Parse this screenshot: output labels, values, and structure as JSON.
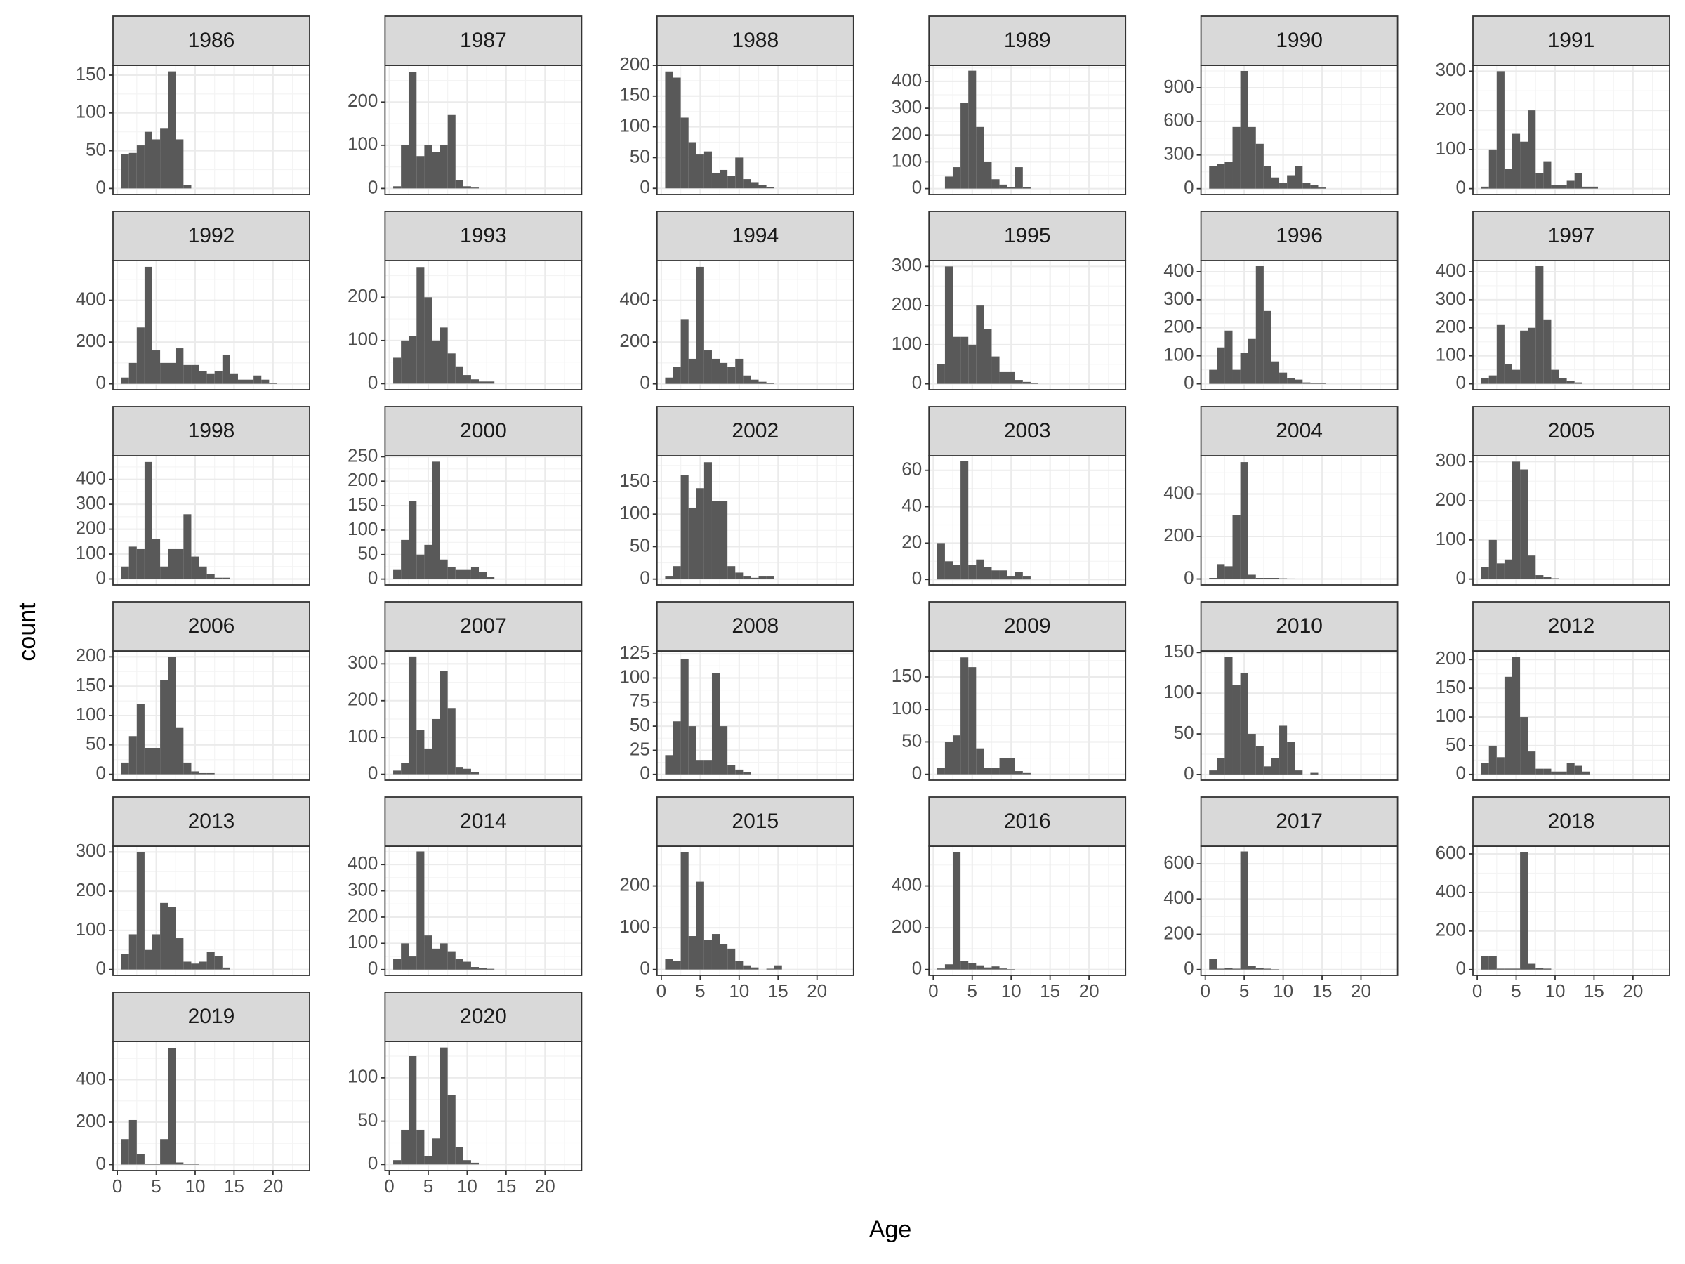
{
  "chart_data": {
    "type": "histogram",
    "x_label": "Age",
    "y_label": "count",
    "color": "#595959",
    "grid": true,
    "bins": [
      0.5,
      1.5,
      2.5,
      3.5,
      4.5,
      5.5,
      6.5,
      7.5,
      8.5,
      9.5,
      10.5,
      11.5,
      12.5,
      13.5,
      14.5,
      15.5,
      16.5,
      17.5,
      18.5,
      19.5,
      20.5,
      21.5,
      22.5,
      23.5
    ],
    "xlim": [
      -0.55,
      24.7
    ],
    "xticks": [
      0,
      5,
      10,
      15,
      20
    ],
    "facets": [
      {
        "title": "1986",
        "ylim": [
          -8,
          163
        ],
        "yticks": [
          0,
          50,
          100,
          150
        ],
        "values": [
          45,
          47,
          57,
          75,
          65,
          80,
          155,
          65,
          5,
          0,
          0,
          0,
          0,
          0,
          0,
          0,
          0,
          0,
          0,
          0,
          0,
          0,
          0
        ]
      },
      {
        "title": "1987",
        "ylim": [
          -14,
          285
        ],
        "yticks": [
          0,
          100,
          200
        ],
        "values": [
          5,
          100,
          270,
          75,
          100,
          85,
          100,
          170,
          20,
          5,
          2,
          0,
          0,
          0,
          0,
          0,
          0,
          0,
          0,
          0,
          0,
          0,
          0
        ]
      },
      {
        "title": "1988",
        "ylim": [
          -10,
          200
        ],
        "yticks": [
          0,
          50,
          100,
          150,
          200
        ],
        "values": [
          190,
          180,
          115,
          75,
          55,
          60,
          25,
          30,
          20,
          50,
          15,
          10,
          5,
          2,
          0,
          0,
          0,
          0,
          0,
          0,
          0,
          0,
          0
        ]
      },
      {
        "title": "1989",
        "ylim": [
          -22,
          460
        ],
        "yticks": [
          0,
          100,
          200,
          300,
          400
        ],
        "values": [
          0,
          45,
          80,
          320,
          440,
          230,
          100,
          35,
          15,
          5,
          80,
          5,
          0,
          0,
          0,
          0,
          0,
          0,
          0,
          0,
          0,
          0,
          0
        ]
      },
      {
        "title": "1990",
        "ylim": [
          -52,
          1100
        ],
        "yticks": [
          0,
          300,
          600,
          900
        ],
        "values": [
          200,
          220,
          240,
          550,
          1050,
          550,
          400,
          200,
          100,
          50,
          120,
          200,
          50,
          30,
          10,
          0,
          0,
          0,
          0,
          0,
          0,
          0,
          0
        ]
      },
      {
        "title": "1991",
        "ylim": [
          -15,
          315
        ],
        "yticks": [
          0,
          100,
          200,
          300
        ],
        "values": [
          5,
          100,
          300,
          50,
          140,
          120,
          200,
          40,
          70,
          10,
          10,
          20,
          40,
          5,
          5,
          0,
          0,
          0,
          0,
          0,
          0,
          0,
          0
        ]
      },
      {
        "title": "1992",
        "ylim": [
          -28,
          590
        ],
        "yticks": [
          0,
          200,
          400
        ],
        "values": [
          30,
          100,
          270,
          560,
          160,
          100,
          100,
          170,
          90,
          90,
          60,
          50,
          60,
          140,
          50,
          20,
          20,
          40,
          20,
          5,
          0,
          0,
          0
        ]
      },
      {
        "title": "1993",
        "ylim": [
          -14,
          285
        ],
        "yticks": [
          0,
          100,
          200
        ],
        "values": [
          60,
          100,
          110,
          270,
          200,
          100,
          130,
          70,
          40,
          20,
          10,
          5,
          5,
          0,
          0,
          0,
          0,
          0,
          0,
          0,
          0,
          0,
          0
        ]
      },
      {
        "title": "1994",
        "ylim": [
          -28,
          590
        ],
        "yticks": [
          0,
          200,
          400
        ],
        "values": [
          30,
          80,
          310,
          120,
          560,
          160,
          120,
          100,
          80,
          120,
          40,
          20,
          10,
          5,
          0,
          0,
          0,
          0,
          0,
          0,
          0,
          0,
          0
        ]
      },
      {
        "title": "1995",
        "ylim": [
          -15,
          315
        ],
        "yticks": [
          0,
          100,
          200,
          300
        ],
        "values": [
          50,
          300,
          120,
          120,
          100,
          200,
          140,
          70,
          30,
          30,
          10,
          5,
          2,
          0,
          0,
          0,
          0,
          0,
          0,
          0,
          0,
          0,
          0
        ]
      },
      {
        "title": "1996",
        "ylim": [
          -21,
          440
        ],
        "yticks": [
          0,
          100,
          200,
          300,
          400
        ],
        "values": [
          50,
          130,
          190,
          50,
          110,
          160,
          420,
          260,
          80,
          40,
          20,
          15,
          5,
          2,
          3,
          0,
          0,
          0,
          0,
          0,
          0,
          0,
          0
        ]
      },
      {
        "title": "1997",
        "ylim": [
          -21,
          440
        ],
        "yticks": [
          0,
          100,
          200,
          300,
          400
        ],
        "values": [
          20,
          30,
          210,
          70,
          50,
          190,
          200,
          420,
          230,
          50,
          20,
          10,
          5,
          0,
          0,
          0,
          0,
          0,
          0,
          0,
          0,
          0,
          0
        ]
      },
      {
        "title": "1998",
        "ylim": [
          -24,
          495
        ],
        "yticks": [
          0,
          100,
          200,
          300,
          400
        ],
        "values": [
          50,
          130,
          120,
          470,
          160,
          50,
          120,
          120,
          260,
          90,
          50,
          20,
          5,
          5,
          0,
          0,
          0,
          0,
          0,
          0,
          0,
          0,
          0
        ]
      },
      {
        "title": "2000",
        "ylim": [
          -12,
          252
        ],
        "yticks": [
          0,
          50,
          100,
          150,
          200,
          250
        ],
        "values": [
          20,
          80,
          160,
          50,
          70,
          240,
          40,
          25,
          20,
          20,
          25,
          15,
          5,
          0,
          0,
          0,
          0,
          0,
          0,
          0,
          0,
          0,
          0
        ]
      },
      {
        "title": "2002",
        "ylim": [
          -9,
          190
        ],
        "yticks": [
          0,
          50,
          100,
          150
        ],
        "values": [
          5,
          20,
          160,
          110,
          140,
          180,
          120,
          120,
          20,
          10,
          5,
          2,
          5,
          5,
          0,
          0,
          0,
          0,
          0,
          0,
          0,
          0,
          0
        ]
      },
      {
        "title": "2003",
        "ylim": [
          -3,
          68
        ],
        "yticks": [
          0,
          20,
          40,
          60
        ],
        "values": [
          20,
          10,
          8,
          65,
          8,
          11,
          7,
          5,
          5,
          2,
          4,
          2,
          0,
          0,
          0,
          0,
          0,
          0,
          0,
          0,
          0,
          0,
          0
        ]
      },
      {
        "title": "2004",
        "ylim": [
          -28,
          580
        ],
        "yticks": [
          0,
          200,
          400
        ],
        "values": [
          5,
          70,
          60,
          300,
          550,
          20,
          5,
          5,
          5,
          3,
          2,
          1,
          0,
          0,
          0,
          0,
          0,
          0,
          0,
          0,
          0,
          0,
          0
        ]
      },
      {
        "title": "2005",
        "ylim": [
          -15,
          315
        ],
        "yticks": [
          0,
          100,
          200,
          300
        ],
        "values": [
          30,
          100,
          40,
          50,
          300,
          280,
          60,
          10,
          5,
          2,
          0,
          0,
          0,
          0,
          0,
          0,
          0,
          0,
          0,
          0,
          0,
          0,
          0
        ]
      },
      {
        "title": "2006",
        "ylim": [
          -10,
          210
        ],
        "yticks": [
          0,
          50,
          100,
          150,
          200
        ],
        "values": [
          20,
          65,
          120,
          45,
          45,
          160,
          200,
          80,
          20,
          5,
          2,
          2,
          0,
          0,
          0,
          0,
          0,
          0,
          0,
          0,
          0,
          0,
          0
        ]
      },
      {
        "title": "2007",
        "ylim": [
          -16,
          335
        ],
        "yticks": [
          0,
          100,
          200,
          300
        ],
        "values": [
          10,
          30,
          320,
          120,
          70,
          150,
          280,
          180,
          20,
          15,
          5,
          0,
          0,
          0,
          0,
          0,
          0,
          0,
          0,
          0,
          0,
          0,
          0
        ]
      },
      {
        "title": "2008",
        "ylim": [
          -6,
          128
        ],
        "yticks": [
          0,
          25,
          50,
          75,
          100,
          125
        ],
        "values": [
          20,
          55,
          120,
          50,
          15,
          15,
          105,
          50,
          10,
          5,
          2,
          0,
          0,
          0,
          0,
          0,
          0,
          0,
          0,
          0,
          0,
          0,
          0
        ]
      },
      {
        "title": "2009",
        "ylim": [
          -9,
          190
        ],
        "yticks": [
          0,
          50,
          100,
          150
        ],
        "values": [
          10,
          50,
          60,
          180,
          165,
          40,
          10,
          10,
          25,
          25,
          5,
          2,
          0,
          0,
          0,
          0,
          0,
          0,
          0,
          0,
          0,
          0,
          0
        ]
      },
      {
        "title": "2010",
        "ylim": [
          -7,
          152
        ],
        "yticks": [
          0,
          50,
          100,
          150
        ],
        "values": [
          5,
          20,
          145,
          110,
          125,
          50,
          35,
          10,
          20,
          60,
          40,
          5,
          0,
          2,
          0,
          0,
          0,
          0,
          0,
          0,
          0,
          0,
          0
        ]
      },
      {
        "title": "2012",
        "ylim": [
          -10,
          215
        ],
        "yticks": [
          0,
          50,
          100,
          150,
          200
        ],
        "values": [
          20,
          50,
          30,
          170,
          205,
          100,
          40,
          10,
          10,
          5,
          5,
          20,
          15,
          5,
          0,
          0,
          0,
          0,
          0,
          0,
          0,
          0,
          0
        ]
      },
      {
        "title": "2013",
        "ylim": [
          -15,
          315
        ],
        "yticks": [
          0,
          100,
          200,
          300
        ],
        "values": [
          40,
          90,
          300,
          50,
          90,
          170,
          160,
          80,
          20,
          15,
          20,
          45,
          35,
          5,
          0,
          0,
          0,
          0,
          0,
          0,
          0,
          0,
          0
        ]
      },
      {
        "title": "2014",
        "ylim": [
          -22,
          470
        ],
        "yticks": [
          0,
          100,
          200,
          300,
          400
        ],
        "values": [
          40,
          100,
          50,
          450,
          130,
          80,
          100,
          70,
          40,
          30,
          10,
          5,
          3,
          0,
          0,
          0,
          0,
          0,
          0,
          0,
          0,
          0,
          0
        ]
      },
      {
        "title": "2015",
        "ylim": [
          -14,
          295
        ],
        "yticks": [
          0,
          100,
          200
        ],
        "values": [
          25,
          20,
          280,
          80,
          210,
          70,
          85,
          60,
          50,
          20,
          10,
          5,
          0,
          2,
          10,
          0,
          0,
          0,
          0,
          0,
          0,
          0,
          0
        ]
      },
      {
        "title": "2016",
        "ylim": [
          -28,
          590
        ],
        "yticks": [
          0,
          200,
          400
        ],
        "values": [
          5,
          25,
          560,
          40,
          30,
          20,
          10,
          15,
          5,
          2,
          0,
          0,
          0,
          0,
          0,
          0,
          0,
          0,
          0,
          0,
          0,
          0,
          0
        ]
      },
      {
        "title": "2017",
        "ylim": [
          -33,
          700
        ],
        "yticks": [
          0,
          200,
          400,
          600
        ],
        "values": [
          60,
          5,
          10,
          5,
          670,
          20,
          10,
          5,
          2,
          0,
          0,
          0,
          0,
          0,
          0,
          0,
          0,
          0,
          0,
          0,
          0,
          0,
          0
        ]
      },
      {
        "title": "2018",
        "ylim": [
          -30,
          640
        ],
        "yticks": [
          0,
          200,
          400,
          600
        ],
        "values": [
          70,
          70,
          5,
          5,
          5,
          610,
          30,
          10,
          5,
          0,
          0,
          0,
          0,
          0,
          0,
          0,
          0,
          0,
          0,
          0,
          0,
          0,
          0
        ]
      },
      {
        "title": "2019",
        "ylim": [
          -28,
          580
        ],
        "yticks": [
          0,
          200,
          400
        ],
        "values": [
          120,
          210,
          50,
          5,
          5,
          120,
          550,
          10,
          5,
          2,
          0,
          0,
          0,
          0,
          0,
          0,
          0,
          0,
          0,
          0,
          0,
          0,
          0
        ]
      },
      {
        "title": "2020",
        "ylim": [
          -7,
          142
        ],
        "yticks": [
          0,
          50,
          100
        ],
        "values": [
          5,
          40,
          125,
          40,
          10,
          30,
          135,
          80,
          20,
          5,
          2,
          0,
          0,
          0,
          0,
          0,
          0,
          0,
          0,
          0,
          0,
          0,
          0
        ]
      }
    ]
  }
}
